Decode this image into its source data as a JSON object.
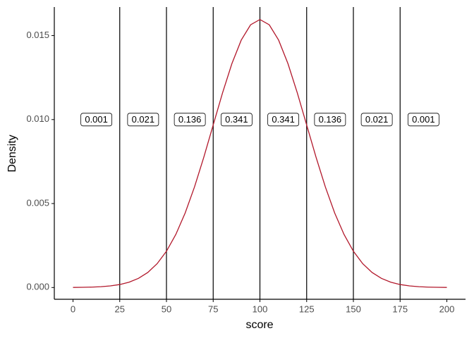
{
  "chart_data": {
    "type": "line",
    "x_label": "score",
    "y_label": "Density",
    "x": [
      0,
      5,
      10,
      15,
      20,
      25,
      30,
      35,
      40,
      45,
      50,
      55,
      60,
      65,
      70,
      75,
      80,
      85,
      90,
      95,
      100,
      105,
      110,
      115,
      120,
      125,
      130,
      135,
      140,
      145,
      150,
      155,
      160,
      165,
      170,
      175,
      180,
      185,
      190,
      195,
      200
    ],
    "series": [
      {
        "color": "#b2182b",
        "values": [
          5.4e-06,
          1.17e-05,
          2.45e-05,
          4.93e-05,
          9.54e-05,
          0.0001773,
          0.0003166,
          0.0005433,
          0.0008958,
          0.001419,
          0.00216,
          0.003158,
          0.004437,
          0.005989,
          0.007768,
          0.009679,
          0.011588,
          0.013329,
          0.014731,
          0.015642,
          0.015958,
          0.015642,
          0.014731,
          0.013329,
          0.011588,
          0.009679,
          0.007768,
          0.005989,
          0.004437,
          0.003158,
          0.00216,
          0.001419,
          0.0008958,
          0.0005433,
          0.0003166,
          0.0001773,
          9.54e-05,
          4.93e-05,
          2.45e-05,
          1.17e-05,
          5.4e-06
        ]
      }
    ],
    "vlines": [
      25,
      50,
      75,
      100,
      125,
      150,
      175
    ],
    "labels": [
      {
        "x": 12.5,
        "y": 0.01,
        "label": "0.001"
      },
      {
        "x": 37.5,
        "y": 0.01,
        "label": "0.021"
      },
      {
        "x": 62.5,
        "y": 0.01,
        "label": "0.136"
      },
      {
        "x": 87.5,
        "y": 0.01,
        "label": "0.341"
      },
      {
        "x": 112.5,
        "y": 0.01,
        "label": "0.341"
      },
      {
        "x": 137.5,
        "y": 0.01,
        "label": "0.136"
      },
      {
        "x": 162.5,
        "y": 0.01,
        "label": "0.021"
      },
      {
        "x": 187.5,
        "y": 0.01,
        "label": "0.001"
      }
    ],
    "xlim": [
      -10,
      210
    ],
    "xticks": [
      0,
      25,
      50,
      75,
      100,
      125,
      150,
      175,
      200
    ],
    "ylim": [
      -0.0007,
      0.0167
    ],
    "yticks": [
      {
        "value": 0,
        "label": "0.000"
      },
      {
        "value": 0.005,
        "label": "0.005"
      },
      {
        "value": 0.01,
        "label": "0.010"
      },
      {
        "value": 0.015,
        "label": "0.015"
      }
    ]
  }
}
